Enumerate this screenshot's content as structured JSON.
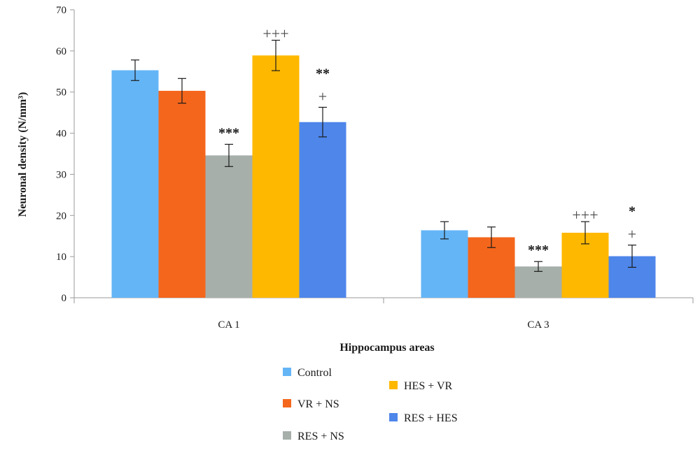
{
  "chart_data": {
    "type": "bar",
    "xlabel": "Hippocampus areas",
    "ylabel": "Neuronal density (N/mm³)",
    "ylim": [
      0,
      70
    ],
    "yticks": [
      0,
      10,
      20,
      30,
      40,
      50,
      60,
      70
    ],
    "grid": false,
    "legend_position": "bottom-center",
    "categories": [
      "CA 1",
      "CA 3"
    ],
    "series": [
      {
        "name": "Control",
        "color": "#64b5f6",
        "values": [
          55.3,
          16.4
        ],
        "errors": [
          2.5,
          2.1
        ],
        "annotations": [
          "",
          ""
        ]
      },
      {
        "name": "VR + NS",
        "color": "#f4661c",
        "values": [
          50.3,
          14.7
        ],
        "errors": [
          3.0,
          2.5
        ],
        "annotations": [
          "",
          ""
        ]
      },
      {
        "name": "RES + NS",
        "color": "#a6afaa",
        "values": [
          34.6,
          7.6
        ],
        "errors": [
          2.7,
          1.2
        ],
        "annotations": [
          "***",
          "***"
        ]
      },
      {
        "name": "HES + VR",
        "color": "#ffb800",
        "values": [
          58.9,
          15.8
        ],
        "errors": [
          3.7,
          2.7
        ],
        "annotations": [
          "+++",
          "+++"
        ]
      },
      {
        "name": "RES + HES",
        "color": "#4e86ea",
        "values": [
          42.7,
          10.1
        ],
        "errors": [
          3.6,
          2.7
        ],
        "annotations": [
          "** +",
          "* +"
        ]
      }
    ]
  }
}
